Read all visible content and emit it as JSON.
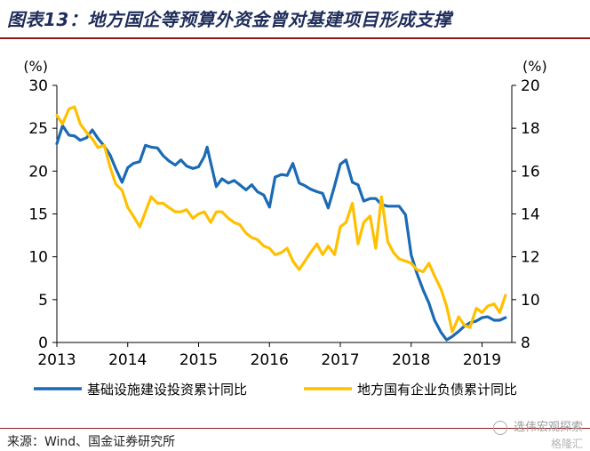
{
  "title": "图表13：地方国企等预算外资金曾对基建项目形成支撑",
  "source": "来源：Wind、国金证券研究所",
  "watermark": {
    "line1": "选伟宏观探索",
    "line2": "格隆汇"
  },
  "colors": {
    "series1": "#1a6ab5",
    "series2": "#ffc000",
    "title": "#1f2d5a",
    "rule": "#8b1a1a"
  },
  "chart_data": {
    "type": "line",
    "left_axis": {
      "unit": "(%)",
      "ylim": [
        0,
        30
      ],
      "ticks": [
        0,
        5,
        10,
        15,
        20,
        25,
        30
      ]
    },
    "right_axis": {
      "unit": "(%)",
      "ylim": [
        8,
        20
      ],
      "ticks": [
        8,
        10,
        12,
        14,
        16,
        18,
        20
      ]
    },
    "x_range": [
      2013,
      2019.42
    ],
    "x_ticks": [
      "2013",
      "2014",
      "2015",
      "2016",
      "2017",
      "2018",
      "2019"
    ],
    "grid": false,
    "legend_position": "bottom",
    "series": [
      {
        "name": "基础设施建设投资累计同比",
        "axis": "left",
        "points": [
          [
            2013.0,
            23.2
          ],
          [
            2013.08,
            25.3
          ],
          [
            2013.17,
            24.2
          ],
          [
            2013.25,
            24.1
          ],
          [
            2013.33,
            23.6
          ],
          [
            2013.42,
            23.9
          ],
          [
            2013.5,
            24.8
          ],
          [
            2013.58,
            23.8
          ],
          [
            2013.67,
            22.9
          ],
          [
            2013.75,
            21.9
          ],
          [
            2013.83,
            20.3
          ],
          [
            2013.92,
            18.7
          ],
          [
            2014.0,
            20.4
          ],
          [
            2014.08,
            20.9
          ],
          [
            2014.17,
            21.1
          ],
          [
            2014.25,
            23.0
          ],
          [
            2014.33,
            22.8
          ],
          [
            2014.42,
            22.7
          ],
          [
            2014.5,
            21.8
          ],
          [
            2014.58,
            21.2
          ],
          [
            2014.67,
            20.7
          ],
          [
            2014.75,
            21.3
          ],
          [
            2014.83,
            20.6
          ],
          [
            2014.92,
            20.3
          ],
          [
            2015.0,
            20.5
          ],
          [
            2015.08,
            21.7
          ],
          [
            2015.12,
            22.8
          ],
          [
            2015.17,
            21.0
          ],
          [
            2015.25,
            18.2
          ],
          [
            2015.33,
            19.1
          ],
          [
            2015.42,
            18.6
          ],
          [
            2015.5,
            18.9
          ],
          [
            2015.58,
            18.4
          ],
          [
            2015.67,
            17.8
          ],
          [
            2015.75,
            18.4
          ],
          [
            2015.83,
            17.6
          ],
          [
            2015.92,
            17.2
          ],
          [
            2016.0,
            15.8
          ],
          [
            2016.08,
            19.3
          ],
          [
            2016.17,
            19.6
          ],
          [
            2016.25,
            19.5
          ],
          [
            2016.33,
            20.9
          ],
          [
            2016.42,
            18.6
          ],
          [
            2016.5,
            18.3
          ],
          [
            2016.58,
            17.9
          ],
          [
            2016.67,
            17.6
          ],
          [
            2016.75,
            17.4
          ],
          [
            2016.83,
            15.7
          ],
          [
            2016.92,
            18.3
          ],
          [
            2017.0,
            20.8
          ],
          [
            2017.08,
            21.3
          ],
          [
            2017.17,
            18.7
          ],
          [
            2017.25,
            18.4
          ],
          [
            2017.33,
            16.5
          ],
          [
            2017.42,
            16.8
          ],
          [
            2017.5,
            16.8
          ],
          [
            2017.58,
            16.1
          ],
          [
            2017.67,
            15.9
          ],
          [
            2017.75,
            15.9
          ],
          [
            2017.83,
            15.9
          ],
          [
            2017.92,
            14.9
          ],
          [
            2018.0,
            10.2
          ],
          [
            2018.08,
            8.1
          ],
          [
            2018.17,
            6.1
          ],
          [
            2018.25,
            4.6
          ],
          [
            2018.33,
            2.6
          ],
          [
            2018.42,
            1.2
          ],
          [
            2018.5,
            0.3
          ],
          [
            2018.58,
            0.7
          ],
          [
            2018.67,
            1.3
          ],
          [
            2018.75,
            1.9
          ],
          [
            2018.83,
            2.3
          ],
          [
            2018.92,
            2.5
          ],
          [
            2019.0,
            2.9
          ],
          [
            2019.08,
            3.0
          ],
          [
            2019.17,
            2.6
          ],
          [
            2019.25,
            2.6
          ],
          [
            2019.33,
            2.9
          ]
        ]
      },
      {
        "name": "地方国有企业负债累计同比",
        "axis": "right",
        "points": [
          [
            2013.0,
            18.6
          ],
          [
            2013.08,
            18.2
          ],
          [
            2013.17,
            18.9
          ],
          [
            2013.25,
            19.0
          ],
          [
            2013.33,
            18.2
          ],
          [
            2013.42,
            17.8
          ],
          [
            2013.5,
            17.5
          ],
          [
            2013.58,
            17.1
          ],
          [
            2013.67,
            17.2
          ],
          [
            2013.75,
            16.2
          ],
          [
            2013.83,
            15.4
          ],
          [
            2013.92,
            15.1
          ],
          [
            2014.0,
            14.3
          ],
          [
            2014.08,
            13.9
          ],
          [
            2014.17,
            13.4
          ],
          [
            2014.25,
            14.1
          ],
          [
            2014.33,
            14.8
          ],
          [
            2014.42,
            14.5
          ],
          [
            2014.5,
            14.5
          ],
          [
            2014.58,
            14.3
          ],
          [
            2014.67,
            14.1
          ],
          [
            2014.75,
            14.1
          ],
          [
            2014.83,
            14.2
          ],
          [
            2014.92,
            13.8
          ],
          [
            2015.0,
            14.0
          ],
          [
            2015.08,
            14.1
          ],
          [
            2015.17,
            13.6
          ],
          [
            2015.25,
            14.1
          ],
          [
            2015.33,
            14.1
          ],
          [
            2015.42,
            13.8
          ],
          [
            2015.5,
            13.6
          ],
          [
            2015.58,
            13.5
          ],
          [
            2015.67,
            13.1
          ],
          [
            2015.75,
            12.9
          ],
          [
            2015.83,
            12.8
          ],
          [
            2015.92,
            12.5
          ],
          [
            2016.0,
            12.4
          ],
          [
            2016.08,
            12.1
          ],
          [
            2016.17,
            12.2
          ],
          [
            2016.25,
            12.4
          ],
          [
            2016.33,
            11.8
          ],
          [
            2016.42,
            11.4
          ],
          [
            2016.5,
            11.8
          ],
          [
            2016.58,
            12.2
          ],
          [
            2016.67,
            12.6
          ],
          [
            2016.75,
            12.1
          ],
          [
            2016.83,
            12.5
          ],
          [
            2016.92,
            12.1
          ],
          [
            2017.0,
            13.4
          ],
          [
            2017.08,
            13.6
          ],
          [
            2017.17,
            14.5
          ],
          [
            2017.25,
            12.6
          ],
          [
            2017.33,
            13.6
          ],
          [
            2017.42,
            13.9
          ],
          [
            2017.5,
            12.4
          ],
          [
            2017.58,
            14.8
          ],
          [
            2017.67,
            12.7
          ],
          [
            2017.75,
            12.2
          ],
          [
            2017.83,
            11.9
          ],
          [
            2017.92,
            11.8
          ],
          [
            2018.0,
            11.7
          ],
          [
            2018.08,
            11.4
          ],
          [
            2018.17,
            11.3
          ],
          [
            2018.25,
            11.7
          ],
          [
            2018.33,
            11.1
          ],
          [
            2018.42,
            10.5
          ],
          [
            2018.5,
            9.7
          ],
          [
            2018.58,
            8.5
          ],
          [
            2018.67,
            9.2
          ],
          [
            2018.75,
            8.8
          ],
          [
            2018.83,
            8.7
          ],
          [
            2018.92,
            9.6
          ],
          [
            2019.0,
            9.4
          ],
          [
            2019.08,
            9.7
          ],
          [
            2019.17,
            9.8
          ],
          [
            2019.25,
            9.4
          ],
          [
            2019.33,
            10.2
          ]
        ]
      }
    ]
  }
}
